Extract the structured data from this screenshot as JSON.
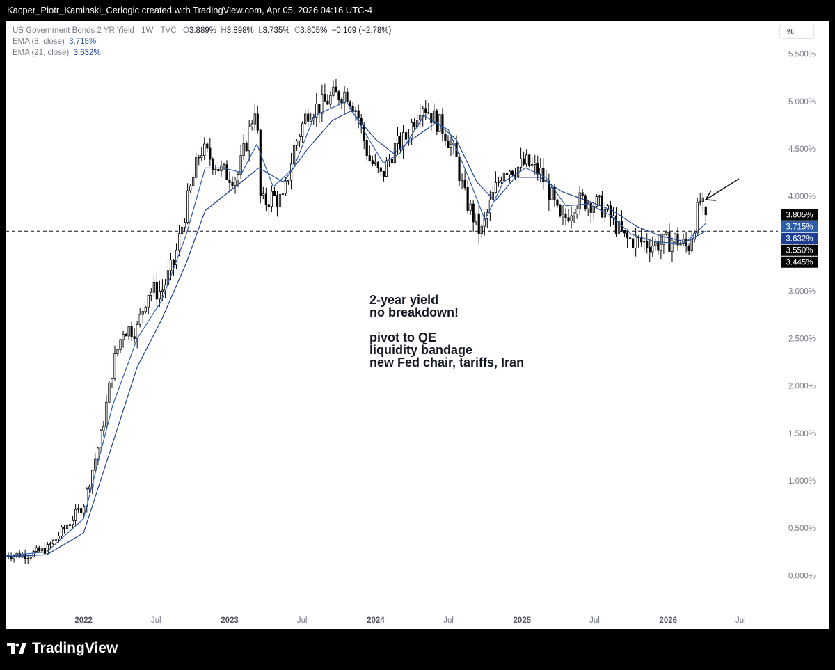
{
  "header": {
    "attribution": "Kacper_Piotr_Kaminski_Cerlogic created with TradingView.com, Apr 05, 2026 04:16 UTC-4"
  },
  "legend": {
    "symbol": "US Government Bonds 2 YR Yield · 1W · TVC",
    "o_label": "O",
    "o_val": "3.889%",
    "h_label": "H",
    "h_val": "3.898%",
    "l_label": "L",
    "l_val": "3.735%",
    "c_label": "C",
    "c_val": "3.805%",
    "change": "−0.109 (−2.78%)",
    "ema8_label": "EMA (8, close)",
    "ema8_val": "3.715%",
    "ema21_label": "EMA (21, close)",
    "ema21_val": "3.632%"
  },
  "scale_button": "%",
  "annotation": [
    "2-year yield",
    "no breakdown!",
    "",
    "pivot to QE",
    "liquidity bandage",
    "new Fed chair, tariffs, Iran"
  ],
  "footer": {
    "brand": "TradingView"
  },
  "chart_data": {
    "type": "candlestick",
    "title": "US Government Bonds 2 YR Yield · 1W · TVC",
    "y_unit": "%",
    "y_ticks": [
      "5.500%",
      "5.000%",
      "4.500%",
      "4.000%",
      "3.500%",
      "3.000%",
      "2.500%",
      "2.000%",
      "1.500%",
      "1.000%",
      "0.500%",
      "0.000%"
    ],
    "y_tick_values": [
      5.5,
      5.0,
      4.5,
      4.0,
      3.5,
      3.0,
      2.5,
      2.0,
      1.5,
      1.0,
      0.5,
      0.0
    ],
    "ylim": [
      -0.35,
      5.85
    ],
    "x_ticks": [
      {
        "label": "2022",
        "date": "2022-01-01"
      },
      {
        "label": "Jul",
        "date": "2022-07-01"
      },
      {
        "label": "2023",
        "date": "2023-01-01"
      },
      {
        "label": "Jul",
        "date": "2023-07-01"
      },
      {
        "label": "2024",
        "date": "2024-01-01"
      },
      {
        "label": "Jul",
        "date": "2024-07-01"
      },
      {
        "label": "2025",
        "date": "2025-01-01"
      },
      {
        "label": "Jul",
        "date": "2025-07-01"
      },
      {
        "label": "2026",
        "date": "2026-01-01"
      },
      {
        "label": "Jul",
        "date": "2026-07-01"
      }
    ],
    "xlim": [
      "2021-06-20",
      "2026-09-15"
    ],
    "close_path": [
      {
        "date": "2021-06-20",
        "value": 0.22
      },
      {
        "date": "2021-08-15",
        "value": 0.22
      },
      {
        "date": "2021-10-01",
        "value": 0.28
      },
      {
        "date": "2021-11-15",
        "value": 0.5
      },
      {
        "date": "2022-01-01",
        "value": 0.75
      },
      {
        "date": "2022-02-15",
        "value": 1.5
      },
      {
        "date": "2022-03-15",
        "value": 2.2
      },
      {
        "date": "2022-04-10",
        "value": 2.6
      },
      {
        "date": "2022-05-15",
        "value": 2.6
      },
      {
        "date": "2022-06-10",
        "value": 3.0
      },
      {
        "date": "2022-07-15",
        "value": 3.0
      },
      {
        "date": "2022-08-15",
        "value": 3.3
      },
      {
        "date": "2022-09-15",
        "value": 3.9
      },
      {
        "date": "2022-10-20",
        "value": 4.5
      },
      {
        "date": "2022-11-15",
        "value": 4.4
      },
      {
        "date": "2022-12-15",
        "value": 4.25
      },
      {
        "date": "2023-01-20",
        "value": 4.2
      },
      {
        "date": "2023-02-20",
        "value": 4.7
      },
      {
        "date": "2023-03-08",
        "value": 5.0
      },
      {
        "date": "2023-03-20",
        "value": 3.9
      },
      {
        "date": "2023-04-15",
        "value": 4.0
      },
      {
        "date": "2023-05-15",
        "value": 3.95
      },
      {
        "date": "2023-06-10",
        "value": 4.5
      },
      {
        "date": "2023-07-15",
        "value": 4.9
      },
      {
        "date": "2023-08-15",
        "value": 4.95
      },
      {
        "date": "2023-09-15",
        "value": 5.05
      },
      {
        "date": "2023-10-20",
        "value": 5.1
      },
      {
        "date": "2023-11-15",
        "value": 4.9
      },
      {
        "date": "2023-12-15",
        "value": 4.4
      },
      {
        "date": "2024-01-15",
        "value": 4.2
      },
      {
        "date": "2024-02-15",
        "value": 4.5
      },
      {
        "date": "2024-03-15",
        "value": 4.6
      },
      {
        "date": "2024-04-25",
        "value": 5.0
      },
      {
        "date": "2024-05-20",
        "value": 4.85
      },
      {
        "date": "2024-06-20",
        "value": 4.7
      },
      {
        "date": "2024-07-20",
        "value": 4.4
      },
      {
        "date": "2024-08-10",
        "value": 4.0
      },
      {
        "date": "2024-09-20",
        "value": 3.6
      },
      {
        "date": "2024-10-20",
        "value": 4.0
      },
      {
        "date": "2024-11-15",
        "value": 4.3
      },
      {
        "date": "2024-12-20",
        "value": 4.3
      },
      {
        "date": "2025-01-10",
        "value": 4.35
      },
      {
        "date": "2025-02-15",
        "value": 4.25
      },
      {
        "date": "2025-03-15",
        "value": 4.0
      },
      {
        "date": "2025-04-08",
        "value": 3.7
      },
      {
        "date": "2025-05-15",
        "value": 3.95
      },
      {
        "date": "2025-06-15",
        "value": 3.95
      },
      {
        "date": "2025-07-15",
        "value": 3.9
      },
      {
        "date": "2025-08-15",
        "value": 3.75
      },
      {
        "date": "2025-09-15",
        "value": 3.55
      },
      {
        "date": "2025-10-20",
        "value": 3.52
      },
      {
        "date": "2025-11-20",
        "value": 3.5
      },
      {
        "date": "2025-12-20",
        "value": 3.5
      },
      {
        "date": "2026-01-20",
        "value": 3.55
      },
      {
        "date": "2026-02-20",
        "value": 3.45
      },
      {
        "date": "2026-03-10",
        "value": 3.75
      },
      {
        "date": "2026-03-22",
        "value": 3.95
      },
      {
        "date": "2026-04-05",
        "value": 3.805
      }
    ],
    "ema8_path": [
      {
        "date": "2021-06-20",
        "value": 0.21
      },
      {
        "date": "2021-10-01",
        "value": 0.25
      },
      {
        "date": "2022-01-01",
        "value": 0.6
      },
      {
        "date": "2022-03-15",
        "value": 1.8
      },
      {
        "date": "2022-05-15",
        "value": 2.5
      },
      {
        "date": "2022-07-15",
        "value": 2.9
      },
      {
        "date": "2022-09-15",
        "value": 3.6
      },
      {
        "date": "2022-11-01",
        "value": 4.3
      },
      {
        "date": "2022-12-15",
        "value": 4.3
      },
      {
        "date": "2023-02-01",
        "value": 4.25
      },
      {
        "date": "2023-03-10",
        "value": 4.55
      },
      {
        "date": "2023-04-20",
        "value": 4.1
      },
      {
        "date": "2023-06-10",
        "value": 4.3
      },
      {
        "date": "2023-08-01",
        "value": 4.85
      },
      {
        "date": "2023-10-20",
        "value": 5.0
      },
      {
        "date": "2023-12-01",
        "value": 4.7
      },
      {
        "date": "2024-01-20",
        "value": 4.35
      },
      {
        "date": "2024-03-01",
        "value": 4.45
      },
      {
        "date": "2024-05-01",
        "value": 4.85
      },
      {
        "date": "2024-07-01",
        "value": 4.7
      },
      {
        "date": "2024-08-20",
        "value": 4.2
      },
      {
        "date": "2024-09-30",
        "value": 3.75
      },
      {
        "date": "2024-11-15",
        "value": 4.15
      },
      {
        "date": "2025-01-10",
        "value": 4.3
      },
      {
        "date": "2025-03-01",
        "value": 4.2
      },
      {
        "date": "2025-04-20",
        "value": 3.9
      },
      {
        "date": "2025-06-15",
        "value": 3.92
      },
      {
        "date": "2025-08-10",
        "value": 3.8
      },
      {
        "date": "2025-10-01",
        "value": 3.6
      },
      {
        "date": "2025-12-01",
        "value": 3.52
      },
      {
        "date": "2026-02-10",
        "value": 3.5
      },
      {
        "date": "2026-04-05",
        "value": 3.715
      }
    ],
    "ema21_path": [
      {
        "date": "2021-06-20",
        "value": 0.2
      },
      {
        "date": "2021-10-01",
        "value": 0.22
      },
      {
        "date": "2022-01-01",
        "value": 0.45
      },
      {
        "date": "2022-03-15",
        "value": 1.4
      },
      {
        "date": "2022-05-15",
        "value": 2.2
      },
      {
        "date": "2022-07-15",
        "value": 2.7
      },
      {
        "date": "2022-09-15",
        "value": 3.3
      },
      {
        "date": "2022-11-01",
        "value": 3.85
      },
      {
        "date": "2023-01-15",
        "value": 4.1
      },
      {
        "date": "2023-03-15",
        "value": 4.3
      },
      {
        "date": "2023-05-15",
        "value": 4.15
      },
      {
        "date": "2023-07-15",
        "value": 4.5
      },
      {
        "date": "2023-09-15",
        "value": 4.8
      },
      {
        "date": "2023-11-01",
        "value": 4.9
      },
      {
        "date": "2024-01-01",
        "value": 4.6
      },
      {
        "date": "2024-02-15",
        "value": 4.45
      },
      {
        "date": "2024-04-01",
        "value": 4.6
      },
      {
        "date": "2024-06-01",
        "value": 4.78
      },
      {
        "date": "2024-07-20",
        "value": 4.6
      },
      {
        "date": "2024-09-10",
        "value": 4.15
      },
      {
        "date": "2024-10-25",
        "value": 3.95
      },
      {
        "date": "2024-12-15",
        "value": 4.2
      },
      {
        "date": "2025-02-15",
        "value": 4.2
      },
      {
        "date": "2025-04-10",
        "value": 4.05
      },
      {
        "date": "2025-06-15",
        "value": 3.95
      },
      {
        "date": "2025-08-15",
        "value": 3.85
      },
      {
        "date": "2025-10-15",
        "value": 3.68
      },
      {
        "date": "2025-12-15",
        "value": 3.58
      },
      {
        "date": "2026-02-15",
        "value": 3.52
      },
      {
        "date": "2026-04-05",
        "value": 3.632
      }
    ],
    "last_candle": {
      "date": "2026-04-05",
      "open": 3.889,
      "high": 3.898,
      "low": 3.735,
      "close": 3.805
    },
    "horizontal_levels": [
      3.632,
      3.55
    ],
    "price_tags": [
      {
        "label": "3.805%",
        "value": 3.805,
        "bg": "#000000"
      },
      {
        "label": "3.715%",
        "value": 3.715,
        "bg": "#2d5ea8"
      },
      {
        "label": "3.632%",
        "value": 3.632,
        "bg": "#1c3f94"
      },
      {
        "label": "3.550%",
        "value": 3.55,
        "bg": "#000000"
      },
      {
        "label": "3.445%",
        "value": 3.445,
        "bg": "#000000"
      }
    ],
    "colors": {
      "up": "#ffffff",
      "down": "#000000",
      "wick": "#000000",
      "ema8": "#2d5ea8",
      "ema21": "#1c3f94"
    }
  }
}
